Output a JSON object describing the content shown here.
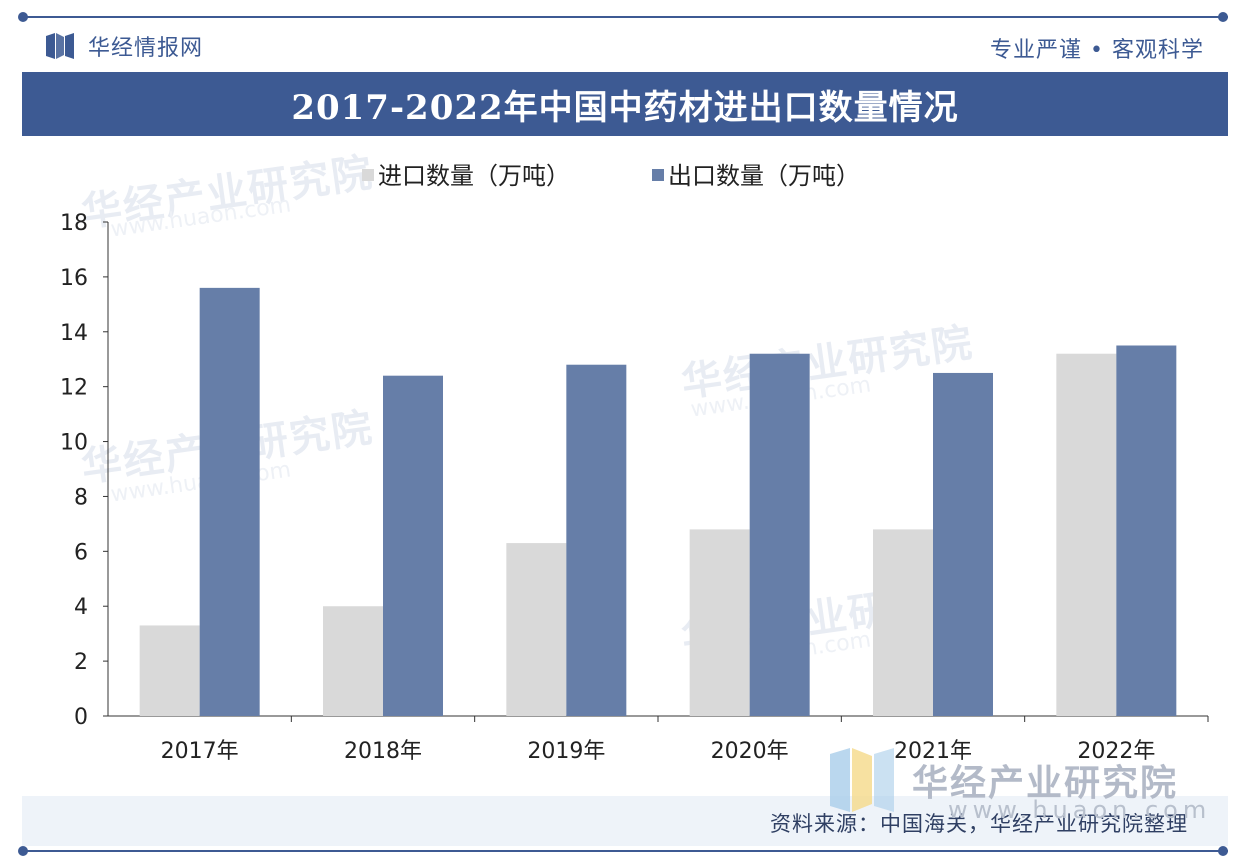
{
  "header": {
    "brand_name": "华经情报网",
    "tagline": "专业严谨 • 客观科学"
  },
  "title": "2017-2022年中国中药材进出口数量情况",
  "watermark": {
    "name": "华经产业研究院",
    "url": "www.huaon.com"
  },
  "footer": {
    "source": "资料来源：中国海关，华经产业研究院整理"
  },
  "colors": {
    "brand": "#3d5a93",
    "import": "#d9d9d9",
    "export": "#667ea8"
  },
  "chart_data": {
    "type": "bar",
    "categories": [
      "2017年",
      "2018年",
      "2019年",
      "2020年",
      "2021年",
      "2022年"
    ],
    "series": [
      {
        "name": "进口数量（万吨）",
        "values": [
          3.3,
          4.0,
          6.3,
          6.8,
          6.8,
          13.2
        ],
        "color": "#d9d9d9"
      },
      {
        "name": "出口数量（万吨）",
        "values": [
          15.6,
          12.4,
          12.8,
          13.2,
          12.5,
          13.5
        ],
        "color": "#667ea8"
      }
    ],
    "ylim": [
      0,
      18
    ],
    "yticks": [
      0,
      2,
      4,
      6,
      8,
      10,
      12,
      14,
      16,
      18
    ],
    "legend": "top-center",
    "grid": false
  }
}
